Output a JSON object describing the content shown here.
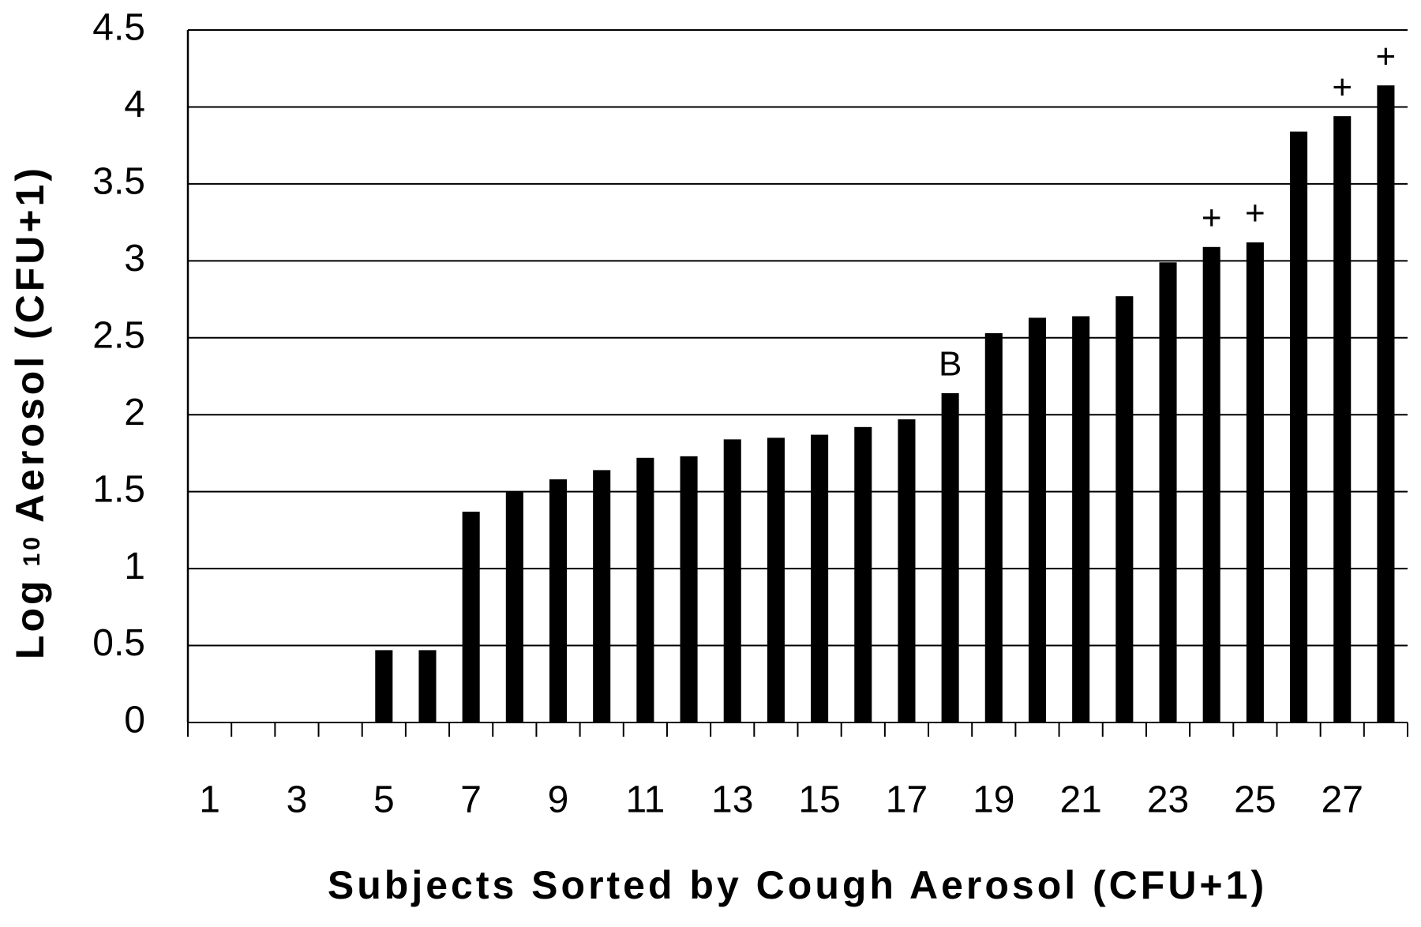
{
  "chart_data": {
    "type": "bar",
    "x_label": "Subjects Sorted by Cough Aerosol (CFU+1)",
    "y_label": {
      "main": "Log",
      "subscript": "10",
      "rest": "Aerosol (CFU+1)"
    },
    "categories": [
      "1",
      null,
      "3",
      null,
      "5",
      null,
      "7",
      null,
      "9",
      null,
      "11",
      null,
      "13",
      null,
      "15",
      null,
      "17",
      null,
      "19",
      null,
      "21",
      null,
      "23",
      null,
      "25",
      null,
      "27",
      null
    ],
    "values": [
      0,
      0,
      0,
      0,
      0.47,
      0.47,
      1.37,
      1.5,
      1.58,
      1.64,
      1.72,
      1.73,
      1.84,
      1.85,
      1.87,
      1.92,
      1.97,
      2.14,
      2.53,
      2.63,
      2.64,
      2.77,
      2.99,
      3.09,
      3.12,
      3.84,
      3.94,
      4.14
    ],
    "color": "#000000",
    "ylim": [
      0,
      4.5
    ],
    "yticks": [
      0,
      0.5,
      1,
      1.5,
      2,
      2.5,
      3,
      3.5,
      4,
      4.5
    ],
    "grid": true,
    "annotations": [
      {
        "text": "B",
        "x": 18
      },
      {
        "text": "+",
        "x": 24
      },
      {
        "text": "+",
        "x": 25
      },
      {
        "text": "+",
        "x": 27
      },
      {
        "text": "+",
        "x": 28
      }
    ]
  }
}
